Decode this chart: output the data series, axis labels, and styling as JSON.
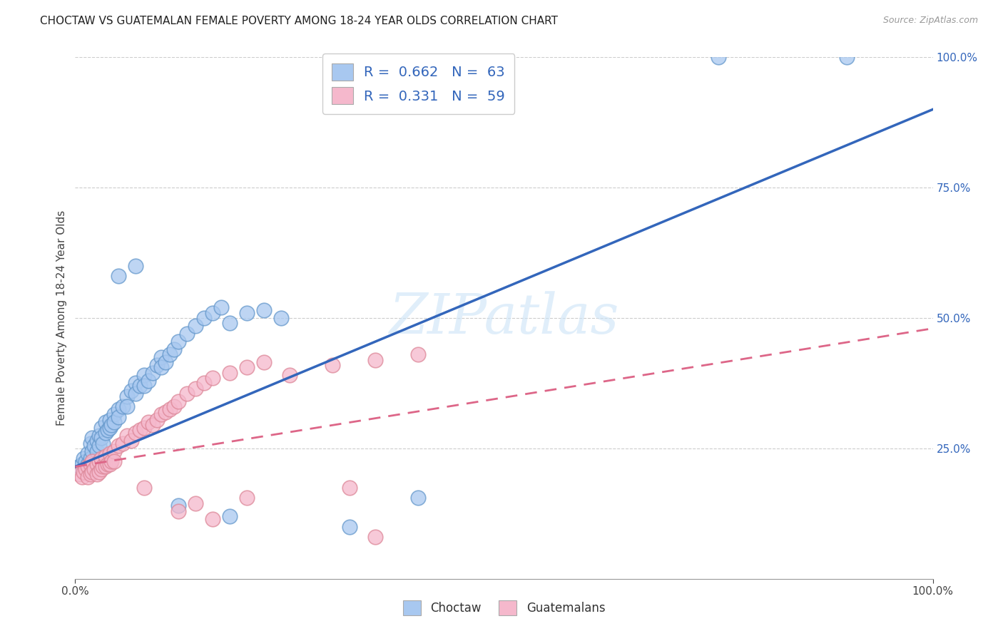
{
  "title": "CHOCTAW VS GUATEMALAN FEMALE POVERTY AMONG 18-24 YEAR OLDS CORRELATION CHART",
  "source": "Source: ZipAtlas.com",
  "ylabel": "Female Poverty Among 18-24 Year Olds",
  "xlim": [
    0,
    1.0
  ],
  "ylim": [
    0,
    1.0
  ],
  "ytick_positions": [
    0.25,
    0.5,
    0.75,
    1.0
  ],
  "ytick_labels": [
    "25.0%",
    "50.0%",
    "75.0%",
    "100.0%"
  ],
  "xtick_positions": [
    0.0,
    1.0
  ],
  "xtick_labels": [
    "0.0%",
    "100.0%"
  ],
  "background_color": "#ffffff",
  "grid_color": "#cccccc",
  "choctaw_color": "#a8c8f0",
  "guatemalan_color": "#f5b8cc",
  "choctaw_edge_color": "#6699cc",
  "guatemalan_edge_color": "#dd8899",
  "choctaw_line_color": "#3366bb",
  "guatemalan_line_color": "#dd6688",
  "choctaw_R": 0.662,
  "choctaw_N": 63,
  "guatemalan_R": 0.331,
  "guatemalan_N": 59,
  "watermark_text": "ZIPatlas",
  "legend_label_choctaw": "Choctaw",
  "legend_label_guatemalan": "Guatemalans",
  "choctaw_line_x0": 0.0,
  "choctaw_line_y0": 0.215,
  "choctaw_line_x1": 1.0,
  "choctaw_line_y1": 0.9,
  "guatemalan_line_x0": 0.0,
  "guatemalan_line_y0": 0.215,
  "guatemalan_line_x1": 1.0,
  "guatemalan_line_y1": 0.48,
  "choctaw_scatter": [
    [
      0.005,
      0.215
    ],
    [
      0.008,
      0.22
    ],
    [
      0.01,
      0.23
    ],
    [
      0.012,
      0.225
    ],
    [
      0.015,
      0.24
    ],
    [
      0.015,
      0.22
    ],
    [
      0.018,
      0.26
    ],
    [
      0.018,
      0.23
    ],
    [
      0.02,
      0.27
    ],
    [
      0.02,
      0.245
    ],
    [
      0.022,
      0.255
    ],
    [
      0.025,
      0.265
    ],
    [
      0.025,
      0.245
    ],
    [
      0.028,
      0.275
    ],
    [
      0.028,
      0.255
    ],
    [
      0.03,
      0.29
    ],
    [
      0.03,
      0.27
    ],
    [
      0.032,
      0.26
    ],
    [
      0.035,
      0.3
    ],
    [
      0.035,
      0.28
    ],
    [
      0.038,
      0.285
    ],
    [
      0.04,
      0.305
    ],
    [
      0.04,
      0.29
    ],
    [
      0.042,
      0.295
    ],
    [
      0.045,
      0.315
    ],
    [
      0.045,
      0.3
    ],
    [
      0.05,
      0.325
    ],
    [
      0.05,
      0.31
    ],
    [
      0.055,
      0.33
    ],
    [
      0.06,
      0.35
    ],
    [
      0.06,
      0.33
    ],
    [
      0.065,
      0.36
    ],
    [
      0.07,
      0.375
    ],
    [
      0.07,
      0.355
    ],
    [
      0.075,
      0.37
    ],
    [
      0.08,
      0.39
    ],
    [
      0.08,
      0.37
    ],
    [
      0.085,
      0.38
    ],
    [
      0.09,
      0.395
    ],
    [
      0.095,
      0.41
    ],
    [
      0.1,
      0.425
    ],
    [
      0.1,
      0.405
    ],
    [
      0.105,
      0.415
    ],
    [
      0.11,
      0.43
    ],
    [
      0.115,
      0.44
    ],
    [
      0.12,
      0.455
    ],
    [
      0.13,
      0.47
    ],
    [
      0.14,
      0.485
    ],
    [
      0.15,
      0.5
    ],
    [
      0.16,
      0.51
    ],
    [
      0.17,
      0.52
    ],
    [
      0.18,
      0.49
    ],
    [
      0.2,
      0.51
    ],
    [
      0.22,
      0.515
    ],
    [
      0.24,
      0.5
    ],
    [
      0.05,
      0.58
    ],
    [
      0.07,
      0.6
    ],
    [
      0.75,
      1.0
    ],
    [
      0.9,
      1.0
    ],
    [
      0.12,
      0.14
    ],
    [
      0.18,
      0.12
    ],
    [
      0.32,
      0.1
    ],
    [
      0.4,
      0.155
    ]
  ],
  "guatemalan_scatter": [
    [
      0.005,
      0.2
    ],
    [
      0.008,
      0.195
    ],
    [
      0.01,
      0.205
    ],
    [
      0.012,
      0.21
    ],
    [
      0.015,
      0.215
    ],
    [
      0.015,
      0.195
    ],
    [
      0.018,
      0.22
    ],
    [
      0.018,
      0.2
    ],
    [
      0.02,
      0.225
    ],
    [
      0.02,
      0.205
    ],
    [
      0.022,
      0.21
    ],
    [
      0.025,
      0.22
    ],
    [
      0.025,
      0.2
    ],
    [
      0.028,
      0.225
    ],
    [
      0.028,
      0.205
    ],
    [
      0.03,
      0.23
    ],
    [
      0.03,
      0.21
    ],
    [
      0.032,
      0.215
    ],
    [
      0.035,
      0.235
    ],
    [
      0.035,
      0.215
    ],
    [
      0.038,
      0.22
    ],
    [
      0.04,
      0.24
    ],
    [
      0.04,
      0.22
    ],
    [
      0.042,
      0.225
    ],
    [
      0.045,
      0.245
    ],
    [
      0.045,
      0.225
    ],
    [
      0.05,
      0.255
    ],
    [
      0.055,
      0.26
    ],
    [
      0.06,
      0.275
    ],
    [
      0.065,
      0.265
    ],
    [
      0.07,
      0.28
    ],
    [
      0.075,
      0.285
    ],
    [
      0.08,
      0.29
    ],
    [
      0.085,
      0.3
    ],
    [
      0.09,
      0.295
    ],
    [
      0.095,
      0.305
    ],
    [
      0.1,
      0.315
    ],
    [
      0.105,
      0.32
    ],
    [
      0.11,
      0.325
    ],
    [
      0.115,
      0.33
    ],
    [
      0.12,
      0.34
    ],
    [
      0.13,
      0.355
    ],
    [
      0.14,
      0.365
    ],
    [
      0.15,
      0.375
    ],
    [
      0.16,
      0.385
    ],
    [
      0.18,
      0.395
    ],
    [
      0.2,
      0.405
    ],
    [
      0.22,
      0.415
    ],
    [
      0.25,
      0.39
    ],
    [
      0.3,
      0.41
    ],
    [
      0.35,
      0.42
    ],
    [
      0.4,
      0.43
    ],
    [
      0.12,
      0.13
    ],
    [
      0.16,
      0.115
    ],
    [
      0.2,
      0.155
    ],
    [
      0.14,
      0.145
    ],
    [
      0.32,
      0.175
    ],
    [
      0.35,
      0.08
    ],
    [
      0.08,
      0.175
    ]
  ]
}
